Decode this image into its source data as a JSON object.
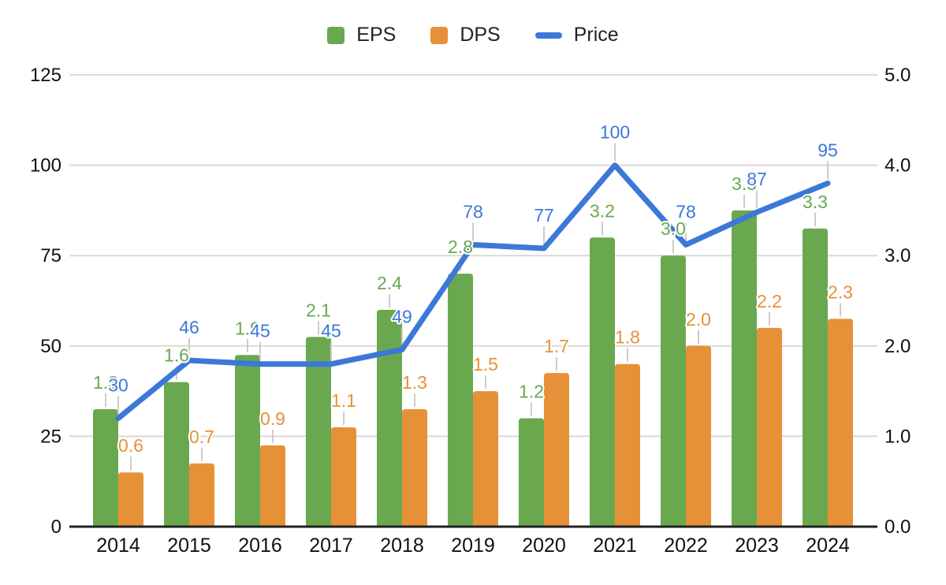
{
  "legend": {
    "items": [
      {
        "label": "EPS",
        "swatch": "eps-swatch-icon",
        "shape": "square",
        "color": "#6aa84f"
      },
      {
        "label": "DPS",
        "swatch": "dps-swatch-icon",
        "shape": "square",
        "color": "#e69138"
      },
      {
        "label": "Price",
        "swatch": "price-swatch-icon",
        "shape": "dash",
        "color": "#3c78d8"
      }
    ]
  },
  "axes": {
    "left_tick_labels": [
      "0",
      "25",
      "50",
      "75",
      "100",
      "125"
    ],
    "right_tick_labels": [
      "0.0",
      "1.0",
      "2.0",
      "3.0",
      "4.0",
      "5.0"
    ],
    "x_tick_labels": [
      "2014",
      "2015",
      "2016",
      "2017",
      "2018",
      "2019",
      "2020",
      "2021",
      "2022",
      "2023",
      "2024"
    ]
  },
  "chart_data": {
    "type": "bar",
    "subtype": "combo-bar-line-dual-axis",
    "categories": [
      "2014",
      "2015",
      "2016",
      "2017",
      "2018",
      "2019",
      "2020",
      "2021",
      "2022",
      "2023",
      "2024"
    ],
    "series": [
      {
        "name": "EPS",
        "render": "bar",
        "axis": "right",
        "color": "#6aa84f",
        "values": [
          1.3,
          1.6,
          1.9,
          2.1,
          2.4,
          2.8,
          1.2,
          3.2,
          3.0,
          3.5,
          3.3
        ],
        "labels": [
          "1.3",
          "1.6",
          "1.9",
          "2.1",
          "2.4",
          "2.8",
          "1.2",
          "3.2",
          "3.0",
          "3.5",
          "3.3"
        ]
      },
      {
        "name": "DPS",
        "render": "bar",
        "axis": "right",
        "color": "#e69138",
        "values": [
          0.6,
          0.7,
          0.9,
          1.1,
          1.3,
          1.5,
          1.7,
          1.8,
          2.0,
          2.2,
          2.3
        ],
        "labels": [
          "0.6",
          "0.7",
          "0.9",
          "1.1",
          "1.3",
          "1.5",
          "1.7",
          "1.8",
          "2.0",
          "2.2",
          "2.3"
        ]
      },
      {
        "name": "Price",
        "render": "line",
        "axis": "left",
        "color": "#3c78d8",
        "values": [
          30,
          46,
          45,
          45,
          49,
          78,
          77,
          100,
          78,
          87,
          95
        ],
        "labels": [
          "30",
          "46",
          "45",
          "45",
          "49",
          "78",
          "77",
          "100",
          "78",
          "87",
          "95"
        ]
      }
    ],
    "left_axis": {
      "min": 0,
      "max": 125,
      "step": 25
    },
    "right_axis": {
      "min": 0.0,
      "max": 5.0,
      "step": 1.0
    },
    "grid": true,
    "legend_position": "top",
    "gridline_color": "#d9d9d9",
    "baseline_color": "#212121",
    "leader_line_color": "#cccccc",
    "axis_text_color": "#111111"
  }
}
